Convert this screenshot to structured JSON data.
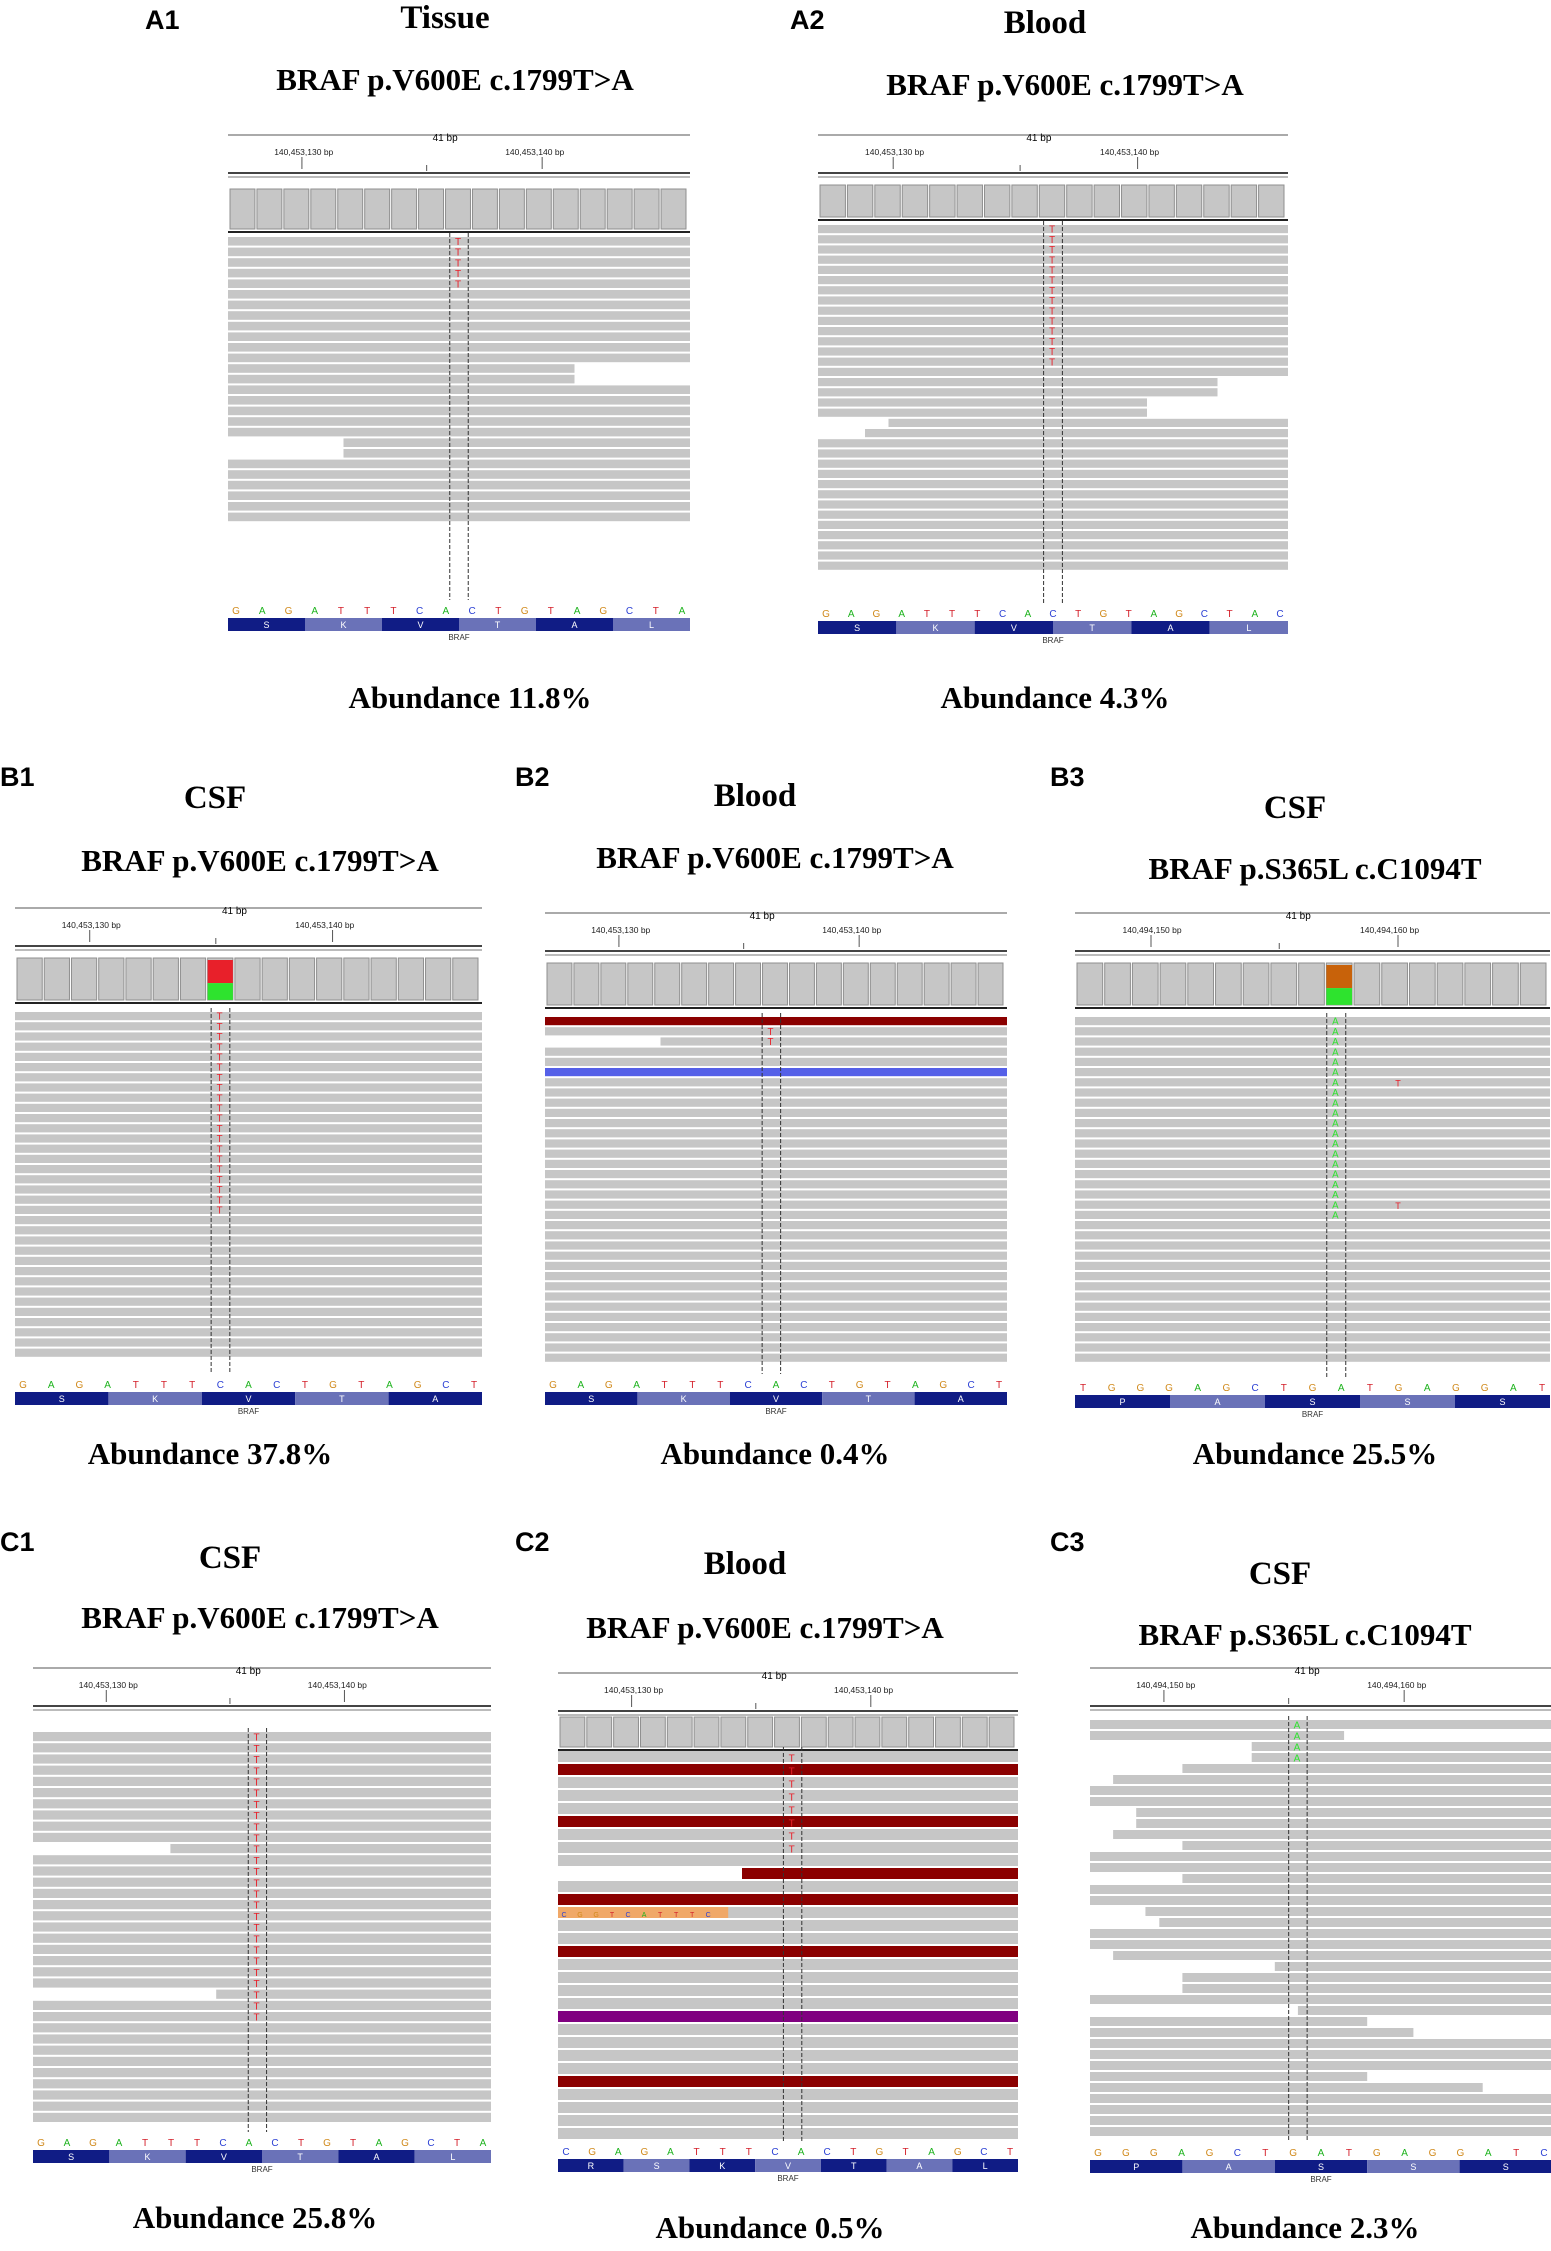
{
  "panels": [
    {
      "id": "A1",
      "sample": "Tissue",
      "mutation": "BRAF p.V600E c.1799T>A",
      "abundance": "Abundance 11.8%",
      "igv": {
        "span": "41 bp",
        "tick_left": "140,453,130 bp",
        "tick_right": "140,453,140 bp",
        "bases": [
          "G",
          "A",
          "G",
          "A",
          "T",
          "T",
          "T",
          "C",
          "A",
          "C",
          "T",
          "G",
          "T",
          "A",
          "G",
          "C",
          "T",
          "A"
        ],
        "aminos": [
          "S",
          "K",
          "V",
          "T",
          "A",
          "L"
        ],
        "gene": "BRAF",
        "mut_base": "T",
        "mut_count": 5
      }
    },
    {
      "id": "A2",
      "sample": "Blood",
      "mutation": "BRAF p.V600E c.1799T>A",
      "abundance": "Abundance 4.3%",
      "igv": {
        "span": "41 bp",
        "tick_left": "140,453,130 bp",
        "tick_right": "140,453,140 bp",
        "bases": [
          "G",
          "A",
          "G",
          "A",
          "T",
          "T",
          "T",
          "C",
          "A",
          "C",
          "T",
          "G",
          "T",
          "A",
          "G",
          "C",
          "T",
          "A",
          "C"
        ],
        "aminos": [
          "S",
          "K",
          "V",
          "T",
          "A",
          "L"
        ],
        "gene": "BRAF",
        "mut_base": "T",
        "mut_count": 14
      }
    },
    {
      "id": "B1",
      "sample": "CSF",
      "mutation": "BRAF p.V600E c.1799T>A",
      "abundance": "Abundance 37.8%",
      "igv": {
        "span": "41 bp",
        "tick_left": "140,453,130 bp",
        "tick_right": "140,453,140 bp",
        "bases": [
          "G",
          "A",
          "G",
          "A",
          "T",
          "T",
          "T",
          "C",
          "A",
          "C",
          "T",
          "G",
          "T",
          "A",
          "G",
          "C",
          "T"
        ],
        "aminos": [
          "S",
          "K",
          "V",
          "T",
          "A"
        ],
        "gene": "BRAF",
        "mut_base": "T",
        "mut_count": 20
      }
    },
    {
      "id": "B2",
      "sample": "Blood",
      "mutation": "BRAF p.V600E c.1799T>A",
      "abundance": "Abundance 0.4%",
      "igv": {
        "span": "41 bp",
        "tick_left": "140,453,130 bp",
        "tick_right": "140,453,140 bp",
        "bases": [
          "G",
          "A",
          "G",
          "A",
          "T",
          "T",
          "T",
          "C",
          "A",
          "C",
          "T",
          "G",
          "T",
          "A",
          "G",
          "C",
          "T"
        ],
        "aminos": [
          "S",
          "K",
          "V",
          "T",
          "A"
        ],
        "gene": "BRAF",
        "mut_base": "T",
        "mut_count": 2
      }
    },
    {
      "id": "B3",
      "sample": "CSF",
      "mutation": "BRAF p.S365L c.C1094T",
      "abundance": "Abundance 25.5%",
      "igv": {
        "span": "41 bp",
        "tick_left": "140,494,150 bp",
        "tick_right": "140,494,160 bp",
        "bases": [
          "T",
          "G",
          "G",
          "G",
          "A",
          "G",
          "C",
          "T",
          "G",
          "A",
          "T",
          "G",
          "A",
          "G",
          "G",
          "A",
          "T"
        ],
        "aminos": [
          "P",
          "A",
          "S",
          "S",
          "S"
        ],
        "gene": "BRAF",
        "mut_base": "A",
        "mut_count": 20,
        "extra_base": "T"
      }
    },
    {
      "id": "C1",
      "sample": "CSF",
      "mutation": "BRAF p.V600E c.1799T>A",
      "abundance": "Abundance 25.8%",
      "igv": {
        "span": "41 bp",
        "tick_left": "140,453,130 bp",
        "tick_right": "140,453,140 bp",
        "bases": [
          "G",
          "A",
          "G",
          "A",
          "T",
          "T",
          "T",
          "C",
          "A",
          "C",
          "T",
          "G",
          "T",
          "A",
          "G",
          "C",
          "T",
          "A"
        ],
        "aminos": [
          "S",
          "K",
          "V",
          "T",
          "A",
          "L"
        ],
        "gene": "BRAF",
        "mut_base": "T",
        "mut_count": 26
      }
    },
    {
      "id": "C2",
      "sample": "Blood",
      "mutation": "BRAF p.V600E c.1799T>A",
      "abundance": "Abundance 0.5%",
      "igv": {
        "span": "41 bp",
        "tick_left": "140,453,130 bp",
        "tick_right": "140,453,140 bp",
        "bases": [
          "C",
          "G",
          "A",
          "G",
          "A",
          "T",
          "T",
          "T",
          "C",
          "A",
          "C",
          "T",
          "G",
          "T",
          "A",
          "G",
          "C",
          "T"
        ],
        "aminos": [
          "R",
          "S",
          "K",
          "V",
          "T",
          "A",
          "L"
        ],
        "gene": "BRAF",
        "mut_base": "T",
        "mut_count": 8,
        "insert_bases": [
          "C",
          "G",
          "G",
          "T",
          "C",
          "A",
          "T",
          "T",
          "T",
          "C"
        ]
      }
    },
    {
      "id": "C3",
      "sample": "CSF",
      "mutation": "BRAF p.S365L c.C1094T",
      "abundance": "Abundance 2.3%",
      "igv": {
        "span": "41 bp",
        "tick_left": "140,494,150 bp",
        "tick_right": "140,494,160 bp",
        "bases": [
          "G",
          "G",
          "G",
          "A",
          "G",
          "C",
          "T",
          "G",
          "A",
          "T",
          "G",
          "A",
          "G",
          "G",
          "A",
          "T",
          "C"
        ],
        "aminos": [
          "P",
          "A",
          "S",
          "S",
          "S"
        ],
        "gene": "BRAF",
        "mut_base": "A",
        "mut_count": 4
      }
    }
  ],
  "colors": {
    "read": "#c6c6c6",
    "mutation_T": "#e8202a",
    "mutation_A": "#2ee32e",
    "base_A": "#1db31d",
    "base_C": "#2a3fd4",
    "base_G": "#d18a1c",
    "base_T": "#d4202a",
    "amino_dark": "#101c85",
    "amino_light": "#6a72b8"
  }
}
